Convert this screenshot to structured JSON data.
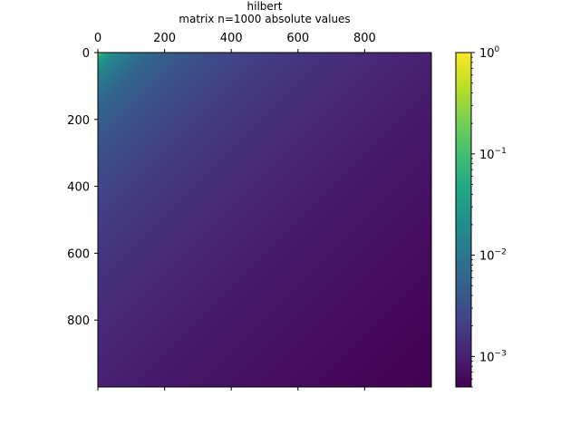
{
  "chart_data": {
    "type": "heatmap",
    "title": "hilbert",
    "subtitle": "matrix n=1000 absolute values",
    "matrix": "hilbert",
    "n": 1000,
    "value_formula": "1/(i+j+1)",
    "xlim": [
      0,
      1000
    ],
    "ylim": [
      0,
      1000
    ],
    "x_ticks": [
      0,
      200,
      400,
      600,
      800
    ],
    "y_ticks": [
      0,
      200,
      400,
      600,
      800
    ],
    "x_tick_labels": [
      "0",
      "200",
      "400",
      "600",
      "800"
    ],
    "y_tick_labels": [
      "0",
      "200",
      "400",
      "600",
      "800"
    ],
    "x_ticks_position": "top",
    "y_axis_inverted": true,
    "colormap": "viridis",
    "color_scale": "log",
    "color_range": [
      0.0005,
      1.0
    ],
    "colorbar": {
      "major_ticks": [
        1,
        0.1,
        0.01,
        0.001
      ],
      "labels": [
        {
          "base": "10",
          "exp": "0"
        },
        {
          "base": "10",
          "exp": "−1"
        },
        {
          "base": "10",
          "exp": "−2"
        },
        {
          "base": "10",
          "exp": "−3"
        }
      ],
      "placement": "right"
    },
    "grid": false,
    "colors": {
      "viridis": [
        "#440154",
        "#482475",
        "#414487",
        "#355f8d",
        "#2a788e",
        "#21918c",
        "#22a884",
        "#44bf70",
        "#7ad151",
        "#bddf26",
        "#fde725"
      ]
    }
  }
}
